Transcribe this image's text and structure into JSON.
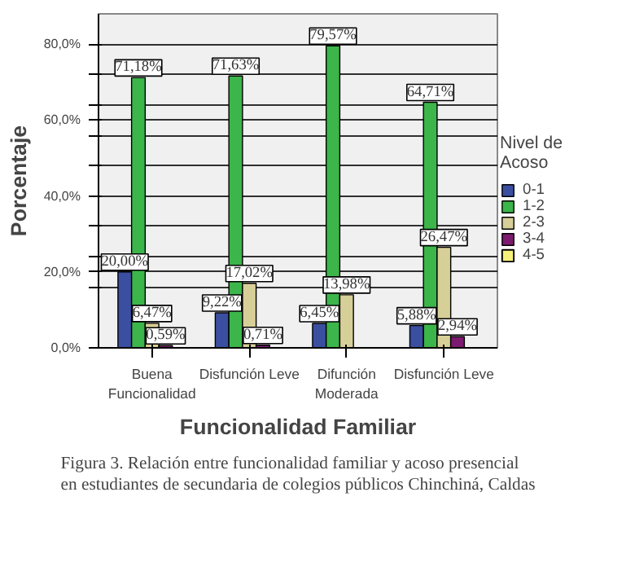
{
  "chart_data": {
    "type": "bar",
    "xlabel": "Funcionalidad Familiar",
    "ylabel": "Porcentaje",
    "legend_title": "Nivel de Acoso",
    "legend": "right",
    "grid": "y",
    "categories": [
      "Buena Funcionalidad",
      "Disfunción Leve",
      "Difunción Moderada",
      "Disfunción Leve"
    ],
    "ylim": [
      0,
      88
    ],
    "yticks": [
      {
        "value": 0,
        "label": "0,0%"
      },
      {
        "value": 16,
        "label": null
      },
      {
        "value": 20,
        "label": "20,0%"
      },
      {
        "value": 24,
        "label": null
      },
      {
        "value": 32,
        "label": null
      },
      {
        "value": 40,
        "label": "40,0%"
      },
      {
        "value": 48,
        "label": null
      },
      {
        "value": 56,
        "label": null
      },
      {
        "value": 60,
        "label": "60,0%"
      },
      {
        "value": 64,
        "label": null
      },
      {
        "value": 72,
        "label": null
      },
      {
        "value": 80,
        "label": "80,0%"
      }
    ],
    "series": [
      {
        "name": "0-1",
        "color": "#3b4fa0",
        "values": [
          20.0,
          9.22,
          6.45,
          5.88
        ],
        "value_labels": [
          "20,00%",
          "9,22%",
          "6,45%",
          "5,88%"
        ]
      },
      {
        "name": "1-2",
        "color": "#3cb54a",
        "values": [
          71.18,
          71.63,
          79.57,
          64.71
        ],
        "value_labels": [
          "71,18%",
          "71,63%",
          "79,57%",
          "64,71%"
        ]
      },
      {
        "name": "2-3",
        "color": "#d7cf98",
        "values": [
          6.47,
          17.02,
          13.98,
          26.47
        ],
        "value_labels": [
          "6,47%",
          "17,02%",
          "13,98%",
          "26,47%"
        ]
      },
      {
        "name": "3-4",
        "color": "#7b1a6e",
        "values": [
          0.59,
          0.71,
          null,
          2.94
        ],
        "value_labels": [
          "0,59%",
          "0,71%",
          null,
          "2,94%"
        ]
      },
      {
        "name": "4-5",
        "color": "#f5f07a",
        "values": [
          null,
          null,
          null,
          null
        ],
        "value_labels": [
          null,
          null,
          null,
          null
        ]
      }
    ],
    "annotations": [
      "Figura 3. Relación entre funcionalidad familiar y acoso presencial en estudiantes de secundaria de colegios públicos Chinchiná, Caldas"
    ]
  }
}
